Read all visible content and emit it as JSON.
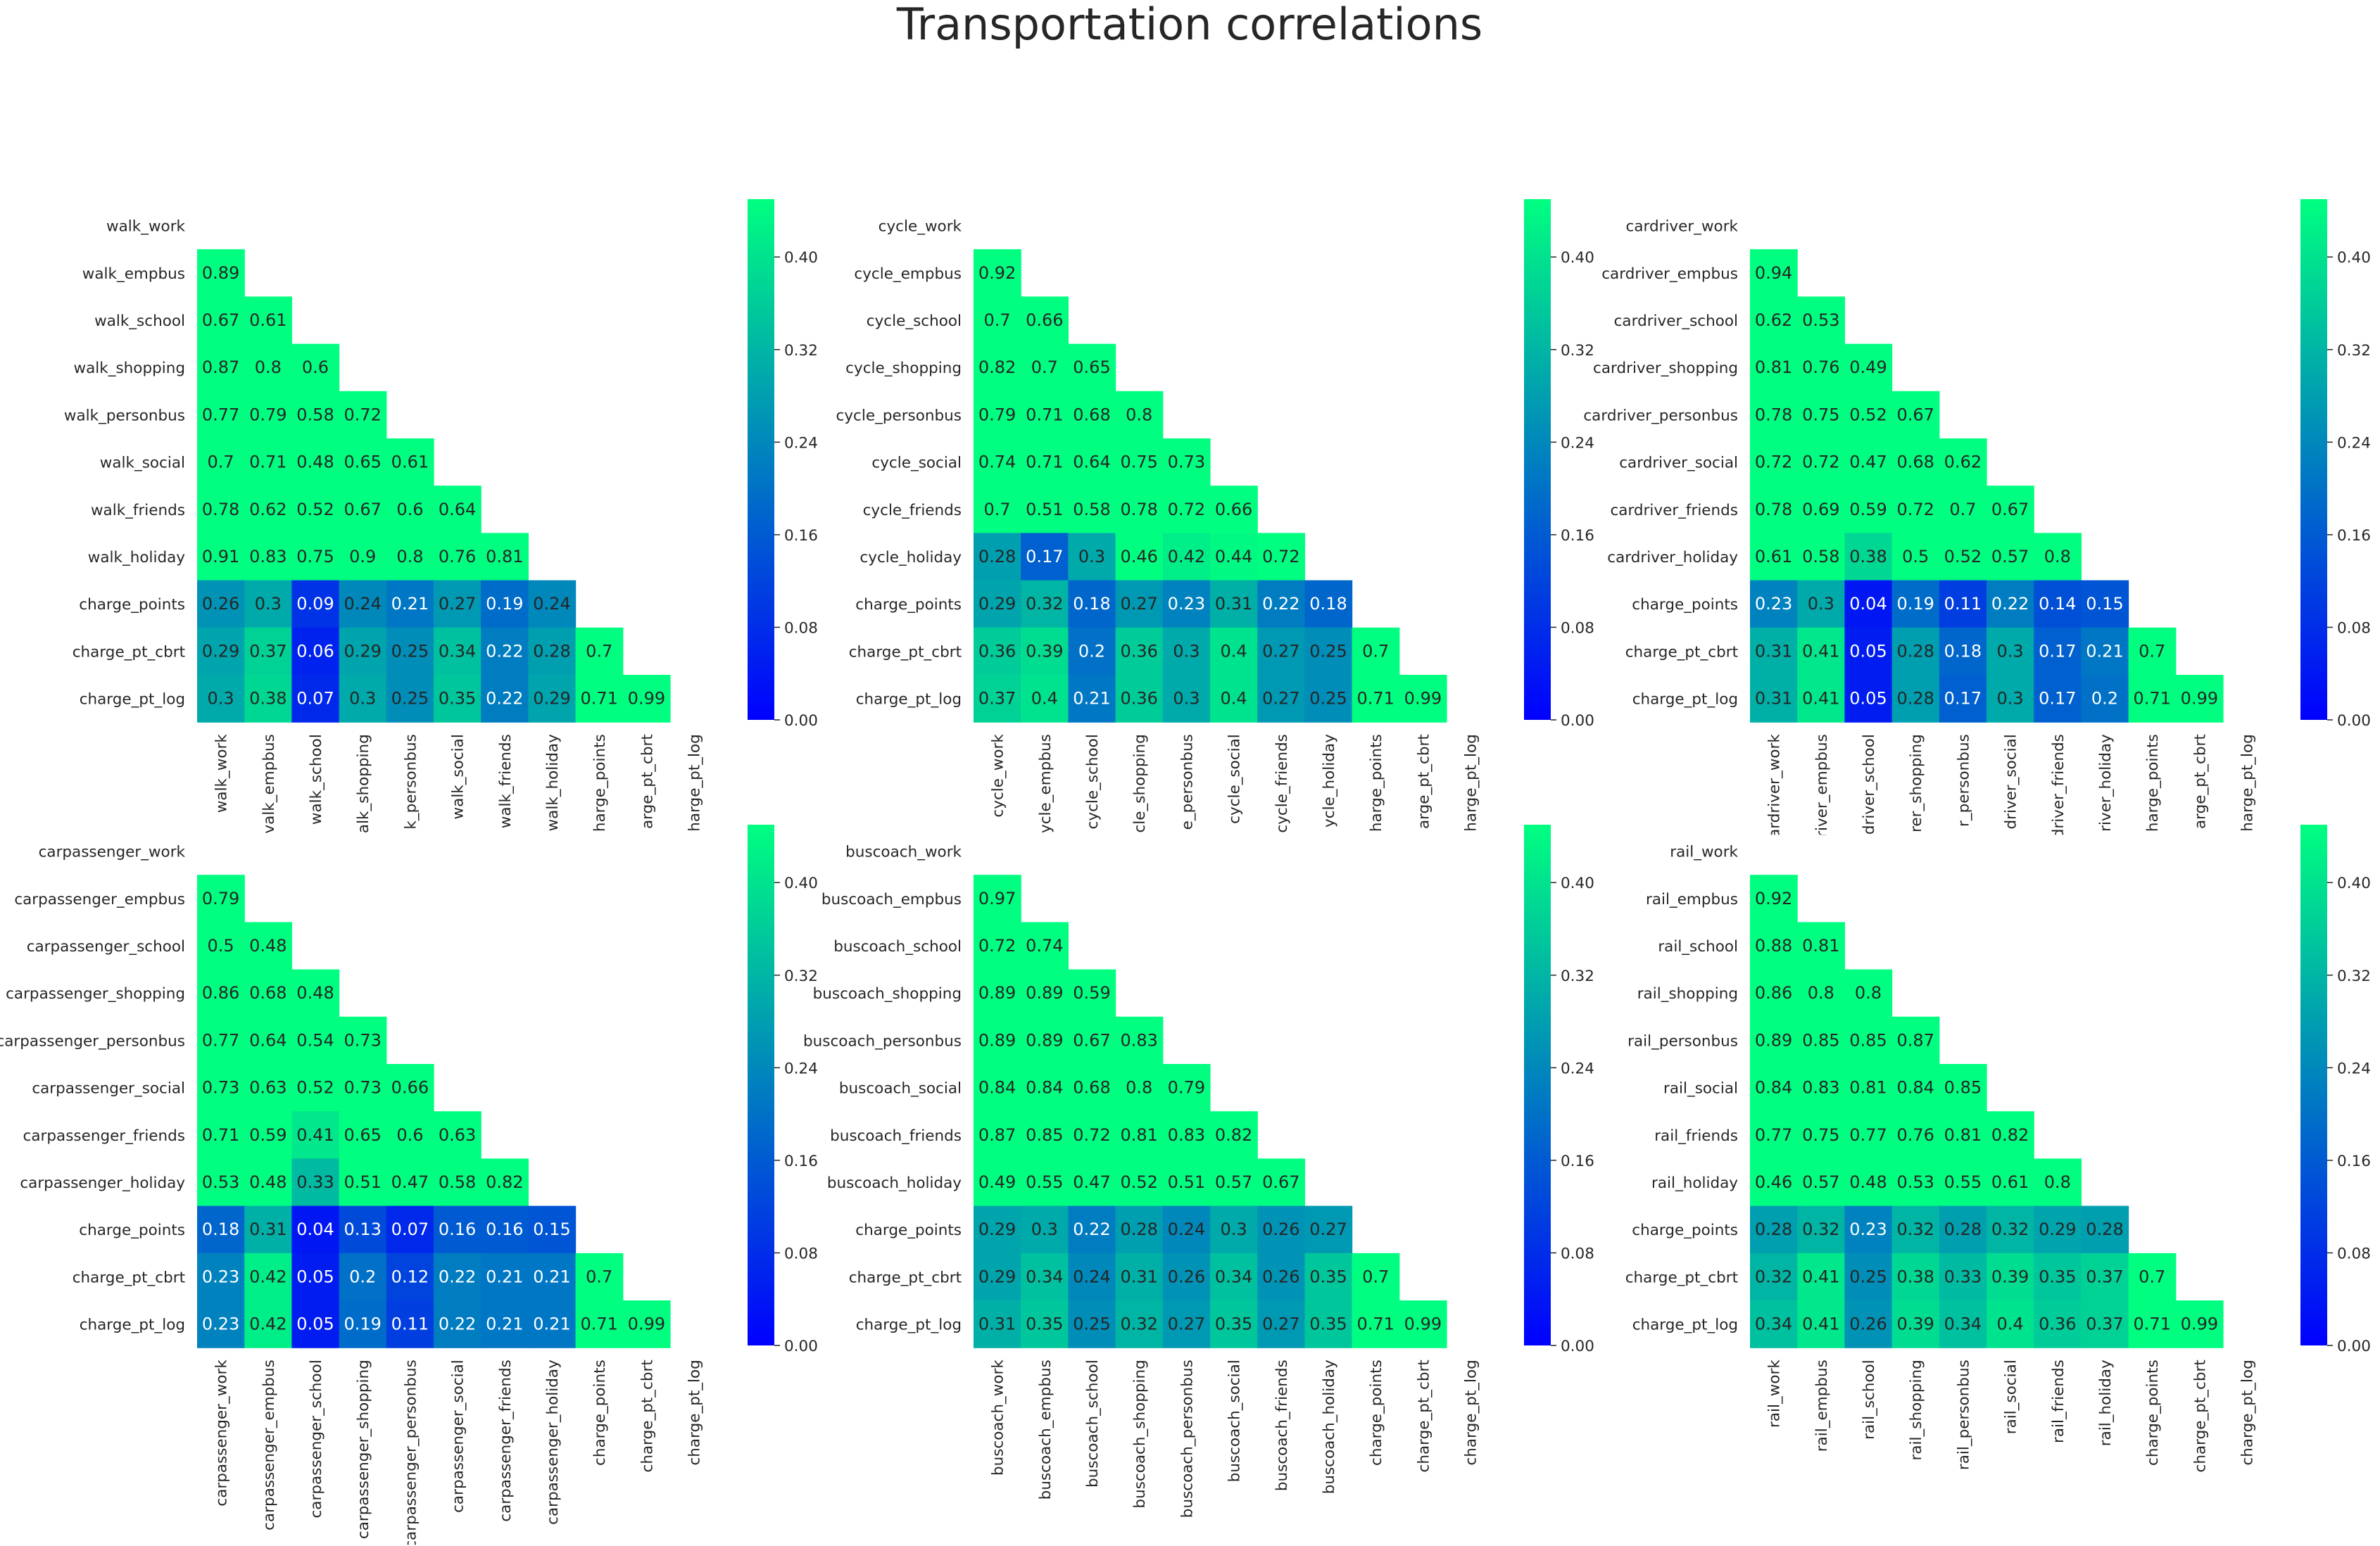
{
  "chart_data": {
    "title": "Transportation correlations",
    "type": "heatmap",
    "colormap": "winter",
    "vmin": 0,
    "vmax": 0.45,
    "colorbar_ticks": [
      "0.00",
      "0.08",
      "0.16",
      "0.24",
      "0.32",
      "0.40"
    ],
    "panels": [
      {
        "rows": [
          "walk_work",
          "walk_empbus",
          "walk_school",
          "walk_shopping",
          "walk_personbus",
          "walk_social",
          "walk_friends",
          "walk_holiday",
          "charge_points",
          "charge_pt_cbrt",
          "charge_pt_log"
        ],
        "cols": [
          "walk_work",
          "walk_empbus",
          "walk_school",
          "walk_shopping",
          "walk_personbus",
          "walk_social",
          "walk_friends",
          "walk_holiday",
          "charge_points",
          "charge_pt_cbrt",
          "charge_pt_log"
        ],
        "col_tick_text": [
          "walk_work",
          "valk_empbus",
          "walk_school",
          "alk_shopping",
          "k_personbus",
          "walk_social",
          "walk_friends",
          "walk_holiday",
          "harge_points",
          "arge_pt_cbrt",
          "harge_pt_log"
        ],
        "values": [
          [],
          [
            0.89
          ],
          [
            0.67,
            0.61
          ],
          [
            0.87,
            0.8,
            0.6
          ],
          [
            0.77,
            0.79,
            0.58,
            0.72
          ],
          [
            0.7,
            0.71,
            0.48,
            0.65,
            0.61
          ],
          [
            0.78,
            0.62,
            0.52,
            0.67,
            0.6,
            0.64
          ],
          [
            0.91,
            0.83,
            0.75,
            0.9,
            0.8,
            0.76,
            0.81
          ],
          [
            0.26,
            0.3,
            0.09,
            0.24,
            0.21,
            0.27,
            0.19,
            0.24
          ],
          [
            0.29,
            0.37,
            0.06,
            0.29,
            0.25,
            0.34,
            0.22,
            0.28,
            0.7
          ],
          [
            0.3,
            0.38,
            0.07,
            0.3,
            0.25,
            0.35,
            0.22,
            0.29,
            0.71,
            0.99
          ]
        ]
      },
      {
        "rows": [
          "cycle_work",
          "cycle_empbus",
          "cycle_school",
          "cycle_shopping",
          "cycle_personbus",
          "cycle_social",
          "cycle_friends",
          "cycle_holiday",
          "charge_points",
          "charge_pt_cbrt",
          "charge_pt_log"
        ],
        "cols": [
          "cycle_work",
          "cycle_empbus",
          "cycle_school",
          "cycle_shopping",
          "cycle_personbus",
          "cycle_social",
          "cycle_friends",
          "cycle_holiday",
          "charge_points",
          "charge_pt_cbrt",
          "charge_pt_log"
        ],
        "col_tick_text": [
          "cycle_work",
          "ycle_empbus",
          "cycle_school",
          "cle_shopping",
          "e_personbus",
          "cycle_social",
          "cycle_friends",
          "ycle_holiday",
          "harge_points",
          "arge_pt_cbrt",
          "harge_pt_log"
        ],
        "values": [
          [],
          [
            0.92
          ],
          [
            0.7,
            0.66
          ],
          [
            0.82,
            0.7,
            0.65
          ],
          [
            0.79,
            0.71,
            0.68,
            0.8
          ],
          [
            0.74,
            0.71,
            0.64,
            0.75,
            0.73
          ],
          [
            0.7,
            0.51,
            0.58,
            0.78,
            0.72,
            0.66
          ],
          [
            0.28,
            0.17,
            0.3,
            0.46,
            0.42,
            0.44,
            0.72
          ],
          [
            0.29,
            0.32,
            0.18,
            0.27,
            0.23,
            0.31,
            0.22,
            0.18
          ],
          [
            0.36,
            0.39,
            0.2,
            0.36,
            0.3,
            0.4,
            0.27,
            0.25,
            0.7
          ],
          [
            0.37,
            0.4,
            0.21,
            0.36,
            0.3,
            0.4,
            0.27,
            0.25,
            0.71,
            0.99
          ]
        ]
      },
      {
        "rows": [
          "cardriver_work",
          "cardriver_empbus",
          "cardriver_school",
          "cardriver_shopping",
          "cardriver_personbus",
          "cardriver_social",
          "cardriver_friends",
          "cardriver_holiday",
          "charge_points",
          "charge_pt_cbrt",
          "charge_pt_log"
        ],
        "cols": [
          "cardriver_work",
          "cardriver_empbus",
          "cardriver_school",
          "cardriver_shopping",
          "cardriver_personbus",
          "cardriver_social",
          "cardriver_friends",
          "cardriver_holiday",
          "charge_points",
          "charge_pt_cbrt",
          "charge_pt_log"
        ],
        "col_tick_text": [
          "cardriver_work",
          "driver_empbus",
          "driver_school",
          "rer_shopping",
          "r_personbus",
          "driver_social",
          "driver_friends",
          "river_holiday",
          "harge_points",
          "arge_pt_cbrt",
          "harge_pt_log"
        ],
        "values": [
          [],
          [
            0.94
          ],
          [
            0.62,
            0.53
          ],
          [
            0.81,
            0.76,
            0.49
          ],
          [
            0.78,
            0.75,
            0.52,
            0.67
          ],
          [
            0.72,
            0.72,
            0.47,
            0.68,
            0.62
          ],
          [
            0.78,
            0.69,
            0.59,
            0.72,
            0.7,
            0.67
          ],
          [
            0.61,
            0.58,
            0.38,
            0.5,
            0.52,
            0.57,
            0.8
          ],
          [
            0.23,
            0.3,
            0.04,
            0.19,
            0.11,
            0.22,
            0.14,
            0.15
          ],
          [
            0.31,
            0.41,
            0.05,
            0.28,
            0.18,
            0.3,
            0.17,
            0.21,
            0.7
          ],
          [
            0.31,
            0.41,
            0.05,
            0.28,
            0.17,
            0.3,
            0.17,
            0.2,
            0.71,
            0.99
          ]
        ]
      },
      {
        "rows": [
          "carpassenger_work",
          "carpassenger_empbus",
          "carpassenger_school",
          "carpassenger_shopping",
          "carpassenger_personbus",
          "carpassenger_social",
          "carpassenger_friends",
          "carpassenger_holiday",
          "charge_points",
          "charge_pt_cbrt",
          "charge_pt_log"
        ],
        "cols": [
          "carpassenger_work",
          "carpassenger_empbus",
          "carpassenger_school",
          "carpassenger_shopping",
          "carpassenger_personbus",
          "carpassenger_social",
          "carpassenger_friends",
          "carpassenger_holiday",
          "charge_points",
          "charge_pt_cbrt",
          "charge_pt_log"
        ],
        "col_tick_text": [
          "carpassenger_work",
          "carpassenger_empbus",
          "carpassenger_school",
          "carpassenger_shopping",
          "carpassenger_personbus",
          "carpassenger_social",
          "carpassenger_friends",
          "carpassenger_holiday",
          "charge_points",
          "charge_pt_cbrt",
          "charge_pt_log"
        ],
        "values": [
          [],
          [
            0.79
          ],
          [
            0.5,
            0.48
          ],
          [
            0.86,
            0.68,
            0.48
          ],
          [
            0.77,
            0.64,
            0.54,
            0.73
          ],
          [
            0.73,
            0.63,
            0.52,
            0.73,
            0.66
          ],
          [
            0.71,
            0.59,
            0.41,
            0.65,
            0.6,
            0.63
          ],
          [
            0.53,
            0.48,
            0.33,
            0.51,
            0.47,
            0.58,
            0.82
          ],
          [
            0.18,
            0.31,
            0.04,
            0.13,
            0.07,
            0.16,
            0.16,
            0.15
          ],
          [
            0.23,
            0.42,
            0.05,
            0.2,
            0.12,
            0.22,
            0.21,
            0.21,
            0.7
          ],
          [
            0.23,
            0.42,
            0.05,
            0.19,
            0.11,
            0.22,
            0.21,
            0.21,
            0.71,
            0.99
          ]
        ]
      },
      {
        "rows": [
          "buscoach_work",
          "buscoach_empbus",
          "buscoach_school",
          "buscoach_shopping",
          "buscoach_personbus",
          "buscoach_social",
          "buscoach_friends",
          "buscoach_holiday",
          "charge_points",
          "charge_pt_cbrt",
          "charge_pt_log"
        ],
        "cols": [
          "buscoach_work",
          "buscoach_empbus",
          "buscoach_school",
          "buscoach_shopping",
          "buscoach_personbus",
          "buscoach_social",
          "buscoach_friends",
          "buscoach_holiday",
          "charge_points",
          "charge_pt_cbrt",
          "charge_pt_log"
        ],
        "col_tick_text": [
          "buscoach_work",
          "buscoach_empbus",
          "buscoach_school",
          "buscoach_shopping",
          "buscoach_personbus",
          "buscoach_social",
          "buscoach_friends",
          "buscoach_holiday",
          "charge_points",
          "charge_pt_cbrt",
          "charge_pt_log"
        ],
        "values": [
          [],
          [
            0.97
          ],
          [
            0.72,
            0.74
          ],
          [
            0.89,
            0.89,
            0.59
          ],
          [
            0.89,
            0.89,
            0.67,
            0.83
          ],
          [
            0.84,
            0.84,
            0.68,
            0.8,
            0.79
          ],
          [
            0.87,
            0.85,
            0.72,
            0.81,
            0.83,
            0.82
          ],
          [
            0.49,
            0.55,
            0.47,
            0.52,
            0.51,
            0.57,
            0.67
          ],
          [
            0.29,
            0.3,
            0.22,
            0.28,
            0.24,
            0.3,
            0.26,
            0.27
          ],
          [
            0.29,
            0.34,
            0.24,
            0.31,
            0.26,
            0.34,
            0.26,
            0.35,
            0.7
          ],
          [
            0.31,
            0.35,
            0.25,
            0.32,
            0.27,
            0.35,
            0.27,
            0.35,
            0.71,
            0.99
          ]
        ]
      },
      {
        "rows": [
          "rail_work",
          "rail_empbus",
          "rail_school",
          "rail_shopping",
          "rail_personbus",
          "rail_social",
          "rail_friends",
          "rail_holiday",
          "charge_points",
          "charge_pt_cbrt",
          "charge_pt_log"
        ],
        "cols": [
          "rail_work",
          "rail_empbus",
          "rail_school",
          "rail_shopping",
          "rail_personbus",
          "rail_social",
          "rail_friends",
          "rail_holiday",
          "charge_points",
          "charge_pt_cbrt",
          "charge_pt_log"
        ],
        "col_tick_text": [
          "rail_work",
          "rail_empbus",
          "rail_school",
          "rail_shopping",
          "rail_personbus",
          "rail_social",
          "rail_friends",
          "rail_holiday",
          "charge_points",
          "charge_pt_cbrt",
          "charge_pt_log"
        ],
        "values": [
          [],
          [
            0.92
          ],
          [
            0.88,
            0.81
          ],
          [
            0.86,
            0.8,
            0.8
          ],
          [
            0.89,
            0.85,
            0.85,
            0.87
          ],
          [
            0.84,
            0.83,
            0.81,
            0.84,
            0.85
          ],
          [
            0.77,
            0.75,
            0.77,
            0.76,
            0.81,
            0.82
          ],
          [
            0.46,
            0.57,
            0.48,
            0.53,
            0.55,
            0.61,
            0.8
          ],
          [
            0.28,
            0.32,
            0.23,
            0.32,
            0.28,
            0.32,
            0.29,
            0.28
          ],
          [
            0.32,
            0.41,
            0.25,
            0.38,
            0.33,
            0.39,
            0.35,
            0.37,
            0.7
          ],
          [
            0.34,
            0.41,
            0.26,
            0.39,
            0.34,
            0.4,
            0.36,
            0.37,
            0.71,
            0.99
          ]
        ]
      }
    ]
  }
}
